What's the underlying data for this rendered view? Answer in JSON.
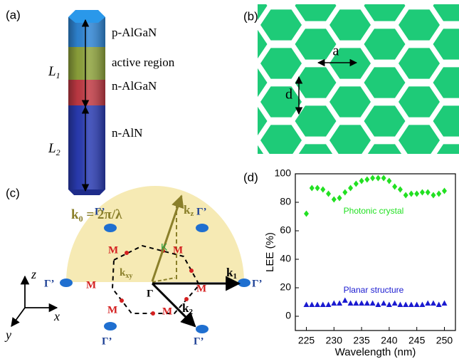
{
  "panel_a": {
    "label": "(a)",
    "layers": [
      "p-AlGaN",
      "active region",
      "n-AlGaN",
      "n-AlN"
    ],
    "lengths": [
      {
        "symbol": "L",
        "subscript": "1"
      },
      {
        "symbol": "L",
        "subscript": "2"
      }
    ]
  },
  "panel_b": {
    "label": "(b)",
    "lattice_constant": "a",
    "spacing": "d"
  },
  "panel_c": {
    "label": "(c)",
    "k0": {
      "symbol": "k",
      "subscript": "0",
      "text": " = 2π/λ"
    },
    "kz": {
      "symbol": "k",
      "subscript": "z"
    },
    "kxy": {
      "symbol": "k",
      "subscript": "xy"
    },
    "k1": {
      "symbol": "k",
      "subscript": "1"
    },
    "k2": {
      "symbol": "k",
      "subscript": "2"
    },
    "K": "K",
    "M": "M",
    "gamma": "Γ",
    "gamma_prime": "Γ’",
    "axes": [
      "z",
      "x",
      "y"
    ]
  },
  "chart_data": {
    "type": "scatter",
    "panel_label": "(d)",
    "x_label": "Wavelength (nm)",
    "y_label": "LEE (%)",
    "x": [
      225,
      226,
      227,
      228,
      229,
      230,
      231,
      232,
      233,
      234,
      235,
      236,
      237,
      238,
      239,
      240,
      241,
      242,
      243,
      244,
      245,
      246,
      247,
      248,
      249,
      250
    ],
    "series": [
      {
        "name": "Photonic crystal",
        "color": "#22e022",
        "marker": "diamond",
        "values": [
          72,
          90,
          90,
          89,
          86,
          82,
          83,
          87,
          90,
          93,
          95,
          96,
          97,
          97,
          97,
          95,
          91,
          89,
          85,
          86,
          86,
          87,
          87,
          85,
          86,
          88
        ]
      },
      {
        "name": "Planar structure",
        "color": "#1a1ad0",
        "marker": "triangle",
        "values": [
          8,
          8,
          8,
          8,
          8,
          9,
          9,
          11,
          9,
          9,
          9,
          9,
          9,
          8,
          9,
          8,
          9,
          8,
          8,
          8,
          8,
          8,
          9,
          9,
          8,
          9
        ]
      }
    ],
    "xlim": [
      223,
      252
    ],
    "ylim": [
      -10,
      100
    ],
    "xticks": [
      225,
      230,
      235,
      240,
      245,
      250
    ],
    "yticks": [
      0,
      20,
      40,
      60,
      80,
      100
    ]
  }
}
